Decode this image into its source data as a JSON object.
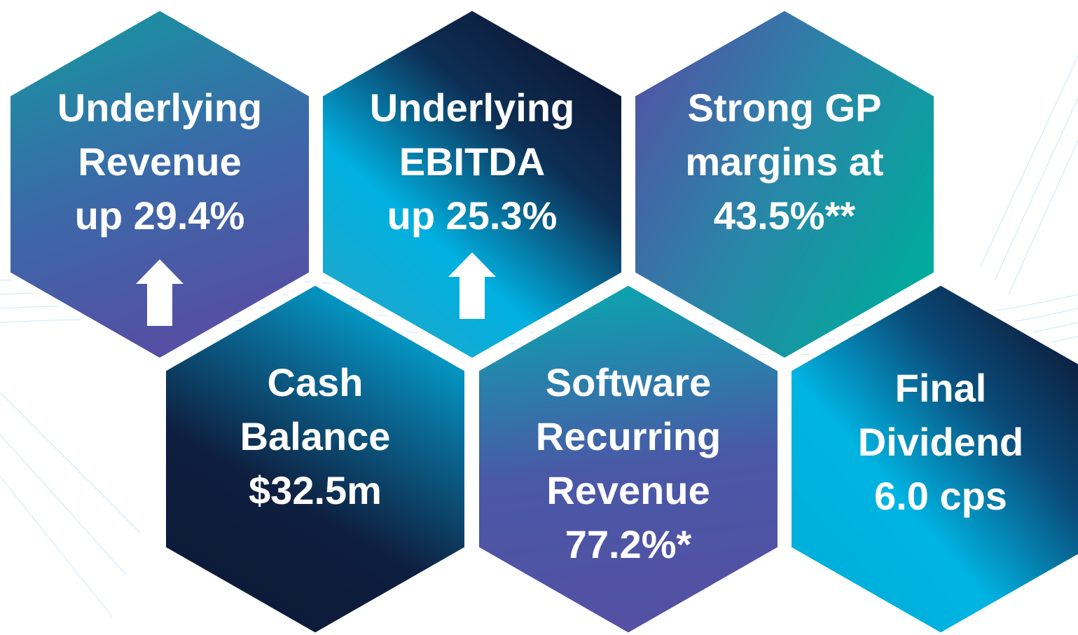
{
  "hexagons": [
    {
      "lines": [
        "Underlying",
        "Revenue",
        "up 29.4%"
      ]
    },
    {
      "lines": [
        "Underlying",
        "EBITDA",
        "up 25.3%"
      ]
    },
    {
      "lines": [
        "Strong GP",
        "margins at",
        "43.5%**"
      ]
    },
    {
      "lines": [
        "Cash",
        "Balance",
        "$32.5m"
      ]
    },
    {
      "lines": [
        "Software",
        "Recurring",
        "Revenue",
        "77.2%*"
      ]
    },
    {
      "lines": [
        "Final",
        "Dividend",
        "6.0 cps"
      ]
    }
  ]
}
